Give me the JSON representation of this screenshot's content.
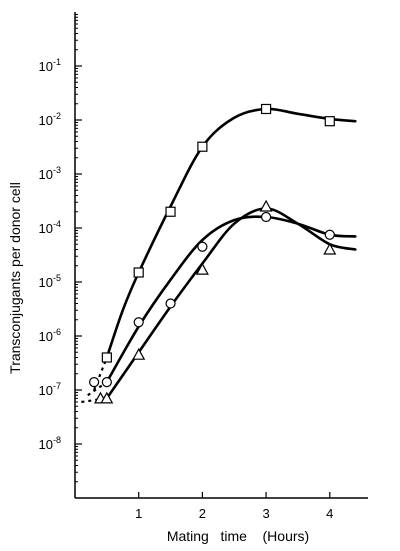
{
  "chart_data": {
    "type": "scatter",
    "title": "",
    "xlabel": "Mating   time    (Hours)",
    "ylabel": "Transconjugants per donor cell",
    "xlim": [
      0,
      4.6
    ],
    "ylim": [
      1e-09,
      1
    ],
    "y_scale": "log",
    "grid": false,
    "legend": "none",
    "x_ticks": [
      {
        "value": 1,
        "label": "1"
      },
      {
        "value": 2,
        "label": "2"
      },
      {
        "value": 3,
        "label": "3"
      },
      {
        "value": 4,
        "label": "4"
      }
    ],
    "y_ticks": [
      {
        "exp": -1,
        "base": "10",
        "sup": "-1"
      },
      {
        "exp": -2,
        "base": "10",
        "sup": "-2"
      },
      {
        "exp": -3,
        "base": "10",
        "sup": "-3"
      },
      {
        "exp": -4,
        "base": "10",
        "sup": "-4"
      },
      {
        "exp": -5,
        "base": "10",
        "sup": "-5"
      },
      {
        "exp": -6,
        "base": "10",
        "sup": "-6"
      },
      {
        "exp": -7,
        "base": "10",
        "sup": "-7"
      },
      {
        "exp": -8,
        "base": "10",
        "sup": "-8"
      }
    ],
    "series": [
      {
        "marker": "square",
        "points": [
          {
            "x": 0.5,
            "y": 4e-07
          },
          {
            "x": 1.0,
            "y": 1.5e-05
          },
          {
            "x": 1.5,
            "y": 0.0002
          },
          {
            "x": 2.0,
            "y": 0.0032
          },
          {
            "x": 3.0,
            "y": 0.016
          },
          {
            "x": 4.0,
            "y": 0.0095
          }
        ],
        "curve": [
          {
            "x": 0.5,
            "y": 4e-07
          },
          {
            "x": 0.75,
            "y": 3e-06
          },
          {
            "x": 1.0,
            "y": 1.5e-05
          },
          {
            "x": 1.5,
            "y": 0.00025
          },
          {
            "x": 2.0,
            "y": 0.0032
          },
          {
            "x": 2.5,
            "y": 0.011
          },
          {
            "x": 3.0,
            "y": 0.016
          },
          {
            "x": 3.5,
            "y": 0.013
          },
          {
            "x": 4.0,
            "y": 0.0105
          },
          {
            "x": 4.4,
            "y": 0.0095
          }
        ],
        "lead_in": [
          {
            "x": 0.3,
            "y": 1e-07
          },
          {
            "x": 0.5,
            "y": 4e-07
          }
        ]
      },
      {
        "marker": "circle",
        "points": [
          {
            "x": 0.3,
            "y": 1.4e-07
          },
          {
            "x": 0.5,
            "y": 1.4e-07
          },
          {
            "x": 1.0,
            "y": 1.8e-06
          },
          {
            "x": 1.5,
            "y": 4e-06
          },
          {
            "x": 2.0,
            "y": 4.5e-05
          },
          {
            "x": 3.0,
            "y": 0.00016
          },
          {
            "x": 4.0,
            "y": 7.5e-05
          }
        ],
        "curve": [
          {
            "x": 0.5,
            "y": 1.4e-07
          },
          {
            "x": 1.0,
            "y": 1.5e-06
          },
          {
            "x": 1.5,
            "y": 1.1e-05
          },
          {
            "x": 2.0,
            "y": 6e-05
          },
          {
            "x": 2.5,
            "y": 0.00014
          },
          {
            "x": 3.0,
            "y": 0.00016
          },
          {
            "x": 3.5,
            "y": 0.00012
          },
          {
            "x": 4.0,
            "y": 7.5e-05
          },
          {
            "x": 4.4,
            "y": 7e-05
          }
        ],
        "lead_in": [
          {
            "x": 0.2,
            "y": 8e-08
          },
          {
            "x": 0.5,
            "y": 1.4e-07
          }
        ]
      },
      {
        "marker": "triangle",
        "points": [
          {
            "x": 0.4,
            "y": 7e-08
          },
          {
            "x": 0.5,
            "y": 7e-08
          },
          {
            "x": 1.0,
            "y": 4.5e-07
          },
          {
            "x": 2.0,
            "y": 1.7e-05
          },
          {
            "x": 3.0,
            "y": 0.00025
          },
          {
            "x": 4.0,
            "y": 4e-05
          }
        ],
        "curve": [
          {
            "x": 0.5,
            "y": 7e-08
          },
          {
            "x": 1.0,
            "y": 5e-07
          },
          {
            "x": 1.5,
            "y": 3.5e-06
          },
          {
            "x": 2.0,
            "y": 2.2e-05
          },
          {
            "x": 2.5,
            "y": 0.00012
          },
          {
            "x": 3.0,
            "y": 0.00023
          },
          {
            "x": 3.5,
            "y": 0.00012
          },
          {
            "x": 4.0,
            "y": 5e-05
          },
          {
            "x": 4.4,
            "y": 4e-05
          }
        ],
        "lead_in": [
          {
            "x": 0.1,
            "y": 6e-08
          },
          {
            "x": 0.5,
            "y": 7e-08
          }
        ]
      }
    ]
  }
}
